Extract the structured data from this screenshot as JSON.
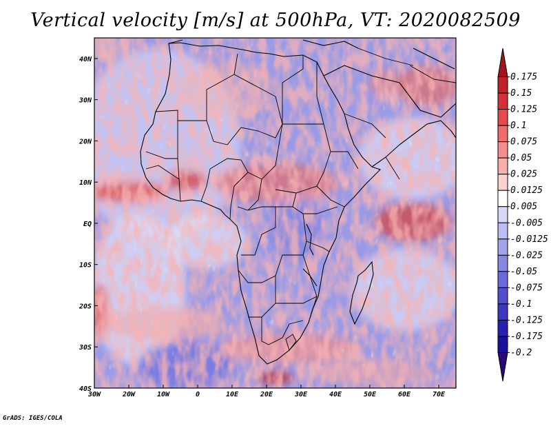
{
  "title": "Vertical velocity [m/s] at 500hPa, VT: 2020082509",
  "footer": "GrADS: IGES/COLA",
  "map": {
    "lon_range": [
      -30,
      75
    ],
    "lat_range": [
      -40,
      45
    ],
    "lon_ticks": [
      {
        "value": -30,
        "label": "30W"
      },
      {
        "value": -20,
        "label": "20W"
      },
      {
        "value": -10,
        "label": "10W"
      },
      {
        "value": 0,
        "label": "0"
      },
      {
        "value": 10,
        "label": "10E"
      },
      {
        "value": 20,
        "label": "20E"
      },
      {
        "value": 30,
        "label": "30E"
      },
      {
        "value": 40,
        "label": "40E"
      },
      {
        "value": 50,
        "label": "50E"
      },
      {
        "value": 60,
        "label": "60E"
      },
      {
        "value": 70,
        "label": "70E"
      }
    ],
    "lat_ticks": [
      {
        "value": 40,
        "label": "40N"
      },
      {
        "value": 30,
        "label": "30N"
      },
      {
        "value": 20,
        "label": "20N"
      },
      {
        "value": 10,
        "label": "10N"
      },
      {
        "value": 0,
        "label": "EQ"
      },
      {
        "value": -10,
        "label": "10S"
      },
      {
        "value": -20,
        "label": "20S"
      },
      {
        "value": -30,
        "label": "30S"
      },
      {
        "value": -40,
        "label": "40S"
      }
    ]
  },
  "colorbar": {
    "levels": [
      "0.175",
      "0.15",
      "0.125",
      "0.1",
      "0.075",
      "0.05",
      "0.025",
      "0.0125",
      "0.005",
      "-0.005",
      "-0.0125",
      "-0.025",
      "-0.05",
      "-0.075",
      "-0.1",
      "-0.125",
      "-0.175",
      "-0.2"
    ],
    "colors": [
      "#a0141e",
      "#c0212a",
      "#d73038",
      "#e64a4e",
      "#ef6d6b",
      "#f58f8b",
      "#f9b0ab",
      "#fcd2cd",
      "#ffffff",
      "#d8d9f8",
      "#bcbdf2",
      "#a2a3ec",
      "#8788e4",
      "#6a6bdb",
      "#5050d0",
      "#3a38c2",
      "#2620b0",
      "#1a0f9a",
      "#2a0a78"
    ]
  }
}
